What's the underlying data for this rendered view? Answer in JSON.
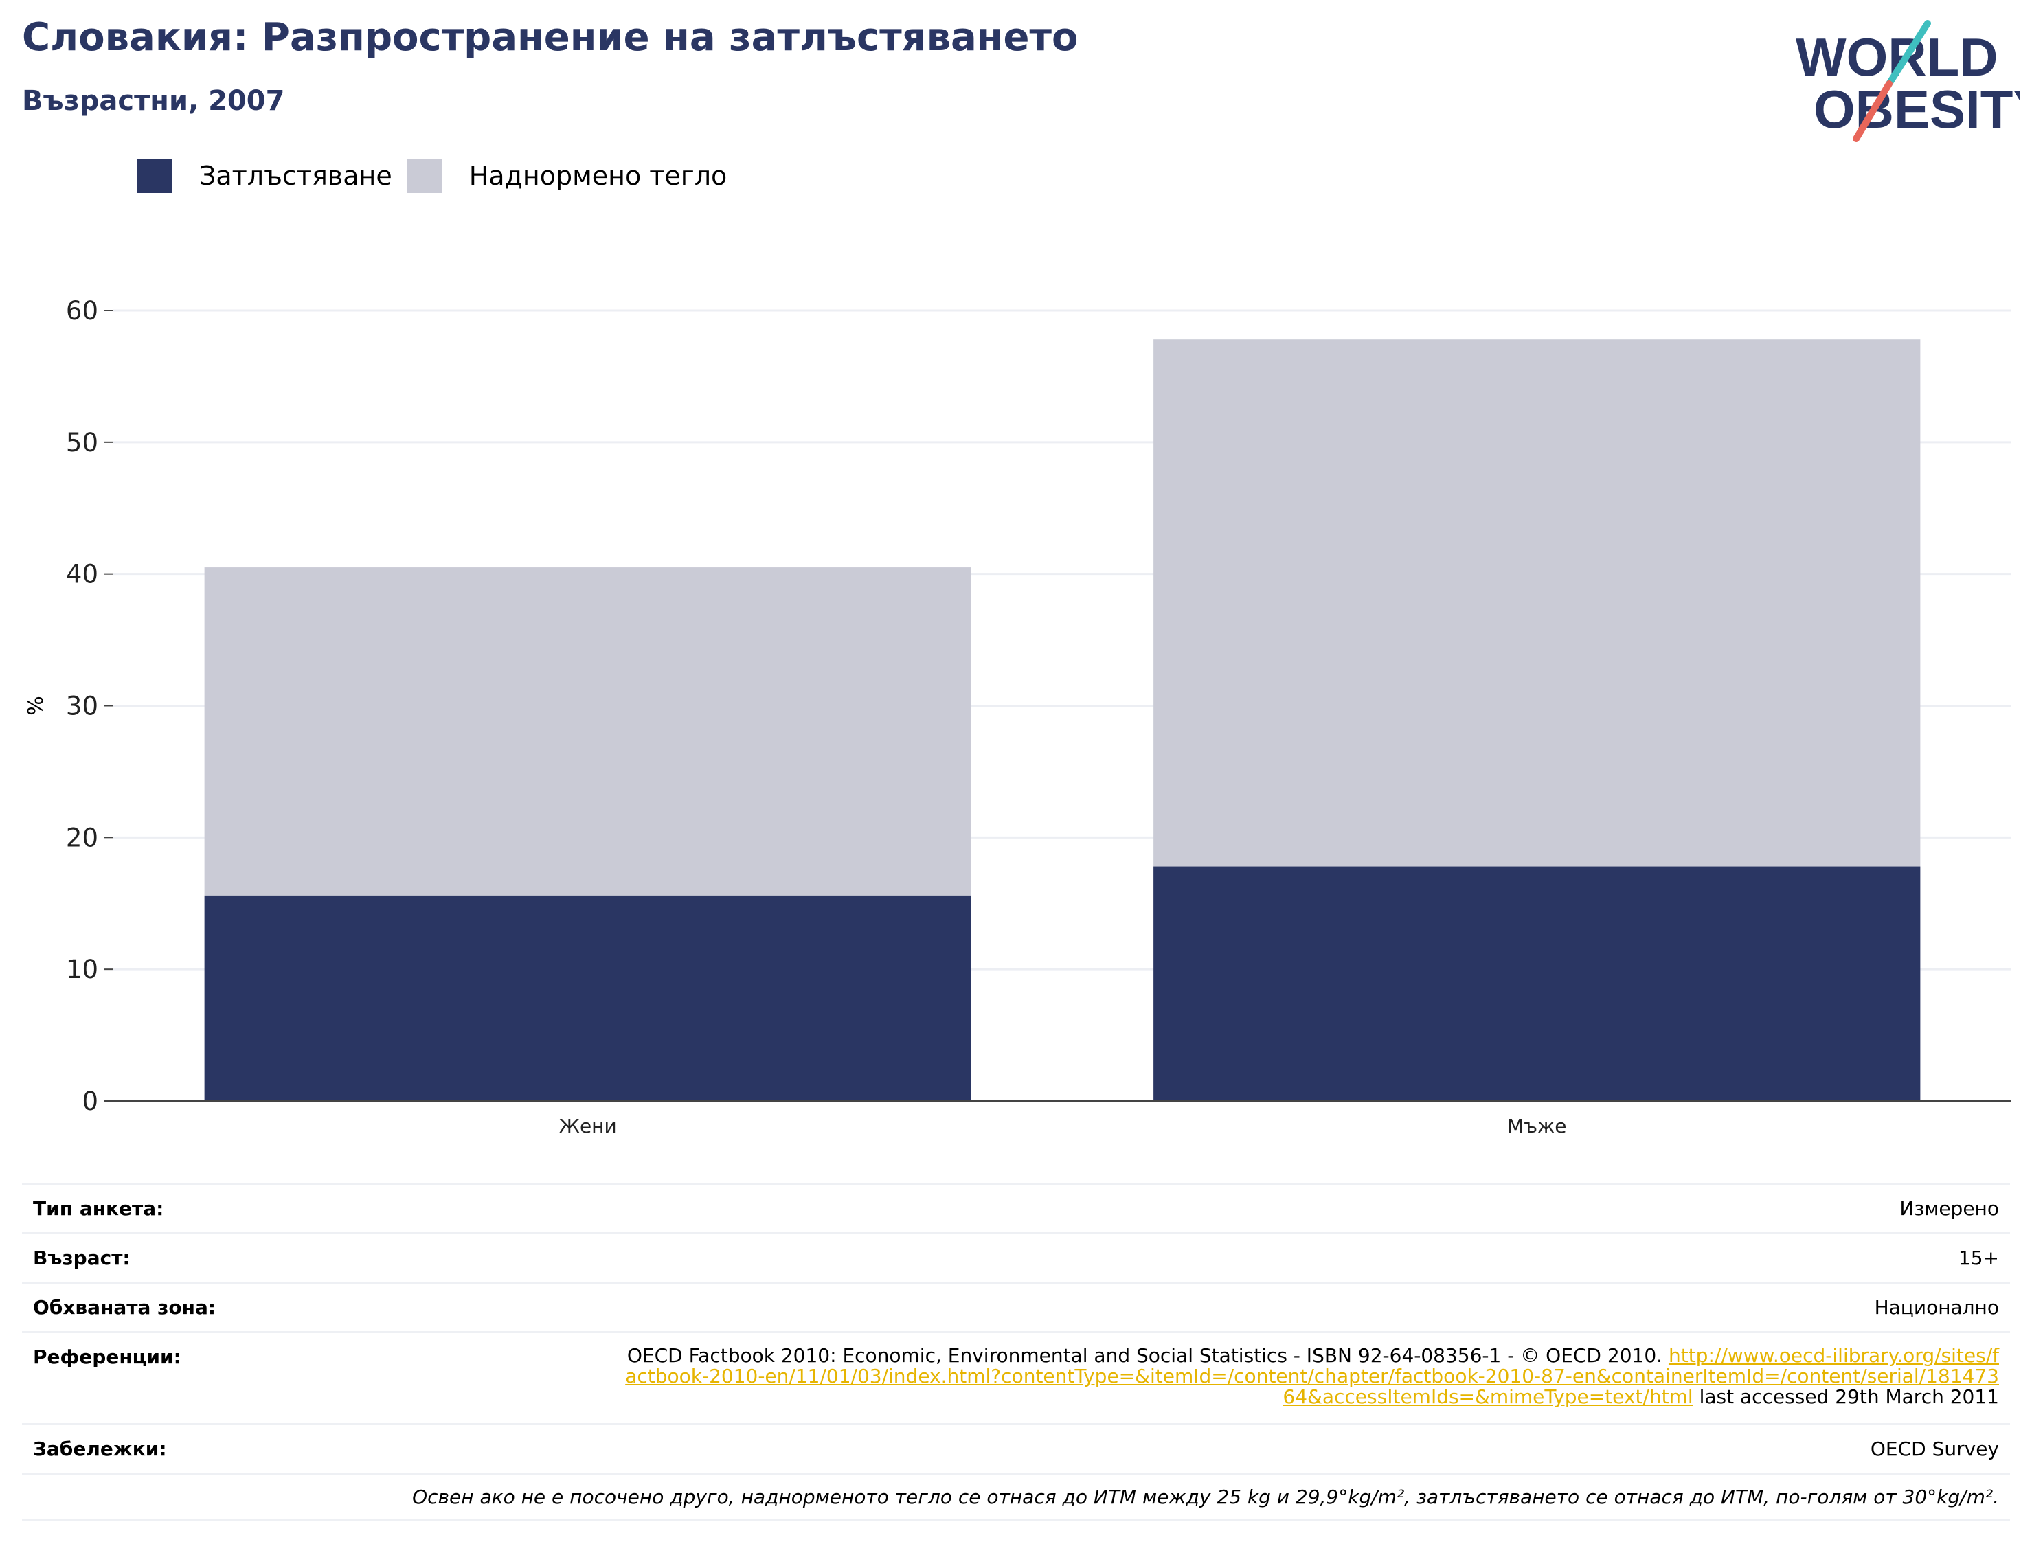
{
  "header": {
    "title": "Словакия: Разпространение на затлъстяването",
    "subtitle": "Възрастни, 2007"
  },
  "logo": {
    "line1": "WORLD",
    "line2": "OBESITY",
    "colors": {
      "text": "#2a3663",
      "slash_teal": "#3fbfbf",
      "slash_coral": "#e8665a"
    }
  },
  "legend": {
    "items": [
      {
        "label": "Затлъстяване",
        "color": "#2a3663"
      },
      {
        "label": "Наднормено тегло",
        "color": "#cacbd6"
      }
    ]
  },
  "chart_data": {
    "type": "bar",
    "stacked": true,
    "title": "",
    "xlabel": "",
    "ylabel": "%",
    "ylim": [
      0,
      60
    ],
    "yticks": [
      0,
      10,
      20,
      30,
      40,
      50,
      60
    ],
    "grid": true,
    "legend_position": "top-left",
    "categories": [
      "Жени",
      "Мъже"
    ],
    "series": [
      {
        "name": "Затлъстяване",
        "color": "#2a3663",
        "values": [
          15.6,
          17.8
        ]
      },
      {
        "name": "Наднормено тегло",
        "color": "#cacbd6",
        "values": [
          24.9,
          40.0
        ]
      }
    ]
  },
  "meta": {
    "survey_type": {
      "label": "Тип анкета:",
      "value": "Измерено"
    },
    "age": {
      "label": "Възраст:",
      "value": "15+"
    },
    "area": {
      "label": "Обхваната зона:",
      "value": "Национално"
    },
    "references": {
      "label": "Референции:",
      "text_before": "OECD Factbook 2010: Economic, Environmental and Social Statistics - ISBN 92-64-08356-1 - © OECD 2010.",
      "link": "http://www.oecd-ilibrary.org/sites/factbook-2010-en/11/01/03/index.html?contentType=&itemId=/content/chapter/factbook-2010-87-en&containerItemId=/content/serial/18147364&accessItemIds=&mimeType=text/html",
      "text_after": "last accessed 29th March 2011"
    },
    "notes": {
      "label": "Забележки:",
      "value": "OECD Survey"
    },
    "footnote": "Освен ако не е посочено друго, наднорменото тегло се отнася до ИТМ между 25 kg и 29,9°kg/m², затлъстяването се отнася до ИТМ, по-голям от 30°kg/m²."
  }
}
